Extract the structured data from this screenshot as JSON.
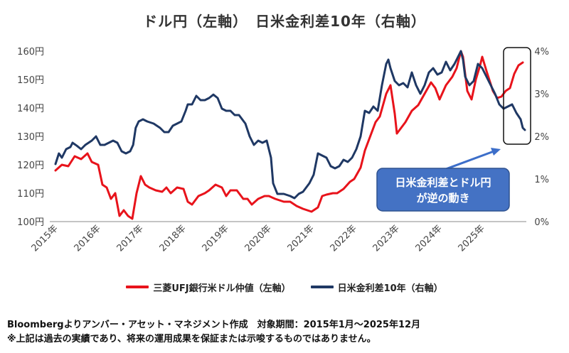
{
  "chart_data": {
    "type": "line",
    "title": "ドル円（左軸）　日米金利差10年（右軸）",
    "x_labels": [
      "2015年",
      "2016年",
      "2017年",
      "2018年",
      "2019年",
      "2020年",
      "2021年",
      "2022年",
      "2023年",
      "2024年",
      "2025年"
    ],
    "y_left": {
      "ticks": [
        "100円",
        "110円",
        "120円",
        "130円",
        "140円",
        "150円",
        "160円"
      ],
      "range": [
        100,
        160
      ]
    },
    "y_right": {
      "ticks": [
        "0%",
        "1%",
        "2%",
        "3%",
        "4%"
      ],
      "range": [
        0,
        4
      ]
    },
    "grid": false,
    "legend_position": "bottom",
    "callout": {
      "lines": [
        "日米金利差とドル円",
        "が逆の動き"
      ]
    },
    "series": [
      {
        "name": "三菱UFJ銀行米ドル仲値（左軸）",
        "axis": "left",
        "color": "#e8131b",
        "points": [
          [
            2015.0,
            118
          ],
          [
            2015.15,
            120
          ],
          [
            2015.3,
            119.5
          ],
          [
            2015.45,
            123
          ],
          [
            2015.6,
            122
          ],
          [
            2015.75,
            124
          ],
          [
            2015.85,
            121
          ],
          [
            2016.0,
            120
          ],
          [
            2016.1,
            113
          ],
          [
            2016.2,
            112
          ],
          [
            2016.3,
            108
          ],
          [
            2016.4,
            110
          ],
          [
            2016.5,
            102
          ],
          [
            2016.6,
            104
          ],
          [
            2016.7,
            102
          ],
          [
            2016.8,
            101
          ],
          [
            2016.9,
            110
          ],
          [
            2016.95,
            113
          ],
          [
            2017.0,
            116
          ],
          [
            2017.1,
            113
          ],
          [
            2017.2,
            112
          ],
          [
            2017.35,
            111
          ],
          [
            2017.5,
            110.5
          ],
          [
            2017.6,
            112
          ],
          [
            2017.7,
            110
          ],
          [
            2017.85,
            112
          ],
          [
            2018.0,
            111.5
          ],
          [
            2018.1,
            107
          ],
          [
            2018.2,
            106
          ],
          [
            2018.35,
            109
          ],
          [
            2018.5,
            110
          ],
          [
            2018.6,
            111
          ],
          [
            2018.75,
            113
          ],
          [
            2018.9,
            112
          ],
          [
            2019.0,
            109
          ],
          [
            2019.1,
            111
          ],
          [
            2019.25,
            111
          ],
          [
            2019.4,
            108
          ],
          [
            2019.5,
            108
          ],
          [
            2019.6,
            106
          ],
          [
            2019.75,
            108
          ],
          [
            2019.9,
            109
          ],
          [
            2020.0,
            109
          ],
          [
            2020.15,
            108
          ],
          [
            2020.25,
            107.5
          ],
          [
            2020.35,
            107
          ],
          [
            2020.5,
            107
          ],
          [
            2020.65,
            105.5
          ],
          [
            2020.8,
            104.5
          ],
          [
            2020.9,
            104
          ],
          [
            2021.0,
            103.5
          ],
          [
            2021.15,
            105
          ],
          [
            2021.25,
            109
          ],
          [
            2021.35,
            109.5
          ],
          [
            2021.5,
            110
          ],
          [
            2021.6,
            110
          ],
          [
            2021.75,
            111.5
          ],
          [
            2021.9,
            114
          ],
          [
            2022.0,
            115
          ],
          [
            2022.15,
            119
          ],
          [
            2022.25,
            125
          ],
          [
            2022.35,
            129
          ],
          [
            2022.5,
            135
          ],
          [
            2022.6,
            137
          ],
          [
            2022.75,
            145
          ],
          [
            2022.85,
            148
          ],
          [
            2022.95,
            138
          ],
          [
            2023.0,
            131
          ],
          [
            2023.1,
            133
          ],
          [
            2023.2,
            135
          ],
          [
            2023.35,
            139
          ],
          [
            2023.5,
            141
          ],
          [
            2023.65,
            145
          ],
          [
            2023.8,
            149
          ],
          [
            2023.9,
            147
          ],
          [
            2024.0,
            143
          ],
          [
            2024.15,
            148
          ],
          [
            2024.3,
            151
          ],
          [
            2024.4,
            154
          ],
          [
            2024.45,
            157
          ],
          [
            2024.5,
            160
          ],
          [
            2024.55,
            158
          ],
          [
            2024.65,
            146
          ],
          [
            2024.75,
            143
          ],
          [
            2024.85,
            150
          ],
          [
            2024.95,
            155
          ],
          [
            2025.0,
            158
          ],
          [
            2025.1,
            153
          ],
          [
            2025.25,
            146
          ],
          [
            2025.35,
            143.5
          ],
          [
            2025.45,
            144
          ],
          [
            2025.55,
            146
          ],
          [
            2025.65,
            147
          ],
          [
            2025.75,
            152
          ],
          [
            2025.85,
            155
          ],
          [
            2025.95,
            156
          ]
        ]
      },
      {
        "name": "日米金利差10年（右軸）",
        "axis": "right",
        "color": "#1f3864",
        "points": [
          [
            2015.0,
            1.35
          ],
          [
            2015.08,
            1.6
          ],
          [
            2015.15,
            1.5
          ],
          [
            2015.25,
            1.7
          ],
          [
            2015.35,
            1.75
          ],
          [
            2015.4,
            1.85
          ],
          [
            2015.5,
            1.78
          ],
          [
            2015.6,
            1.7
          ],
          [
            2015.7,
            1.8
          ],
          [
            2015.85,
            1.9
          ],
          [
            2015.95,
            2.0
          ],
          [
            2016.05,
            1.8
          ],
          [
            2016.15,
            1.8
          ],
          [
            2016.25,
            1.85
          ],
          [
            2016.35,
            1.9
          ],
          [
            2016.45,
            1.85
          ],
          [
            2016.55,
            1.65
          ],
          [
            2016.65,
            1.6
          ],
          [
            2016.75,
            1.65
          ],
          [
            2016.82,
            1.8
          ],
          [
            2016.88,
            2.2
          ],
          [
            2016.95,
            2.35
          ],
          [
            2017.05,
            2.4
          ],
          [
            2017.15,
            2.35
          ],
          [
            2017.3,
            2.3
          ],
          [
            2017.45,
            2.2
          ],
          [
            2017.55,
            2.1
          ],
          [
            2017.65,
            2.1
          ],
          [
            2017.75,
            2.25
          ],
          [
            2017.85,
            2.3
          ],
          [
            2017.95,
            2.35
          ],
          [
            2018.05,
            2.6
          ],
          [
            2018.1,
            2.75
          ],
          [
            2018.2,
            2.75
          ],
          [
            2018.3,
            2.95
          ],
          [
            2018.4,
            2.85
          ],
          [
            2018.5,
            2.85
          ],
          [
            2018.6,
            2.9
          ],
          [
            2018.7,
            2.98
          ],
          [
            2018.8,
            2.9
          ],
          [
            2018.9,
            2.65
          ],
          [
            2019.0,
            2.6
          ],
          [
            2019.1,
            2.6
          ],
          [
            2019.2,
            2.5
          ],
          [
            2019.3,
            2.5
          ],
          [
            2019.45,
            2.3
          ],
          [
            2019.55,
            2.0
          ],
          [
            2019.65,
            1.8
          ],
          [
            2019.75,
            1.9
          ],
          [
            2019.85,
            1.85
          ],
          [
            2019.95,
            1.9
          ],
          [
            2020.05,
            1.5
          ],
          [
            2020.1,
            0.9
          ],
          [
            2020.2,
            0.65
          ],
          [
            2020.35,
            0.65
          ],
          [
            2020.5,
            0.6
          ],
          [
            2020.6,
            0.55
          ],
          [
            2020.7,
            0.65
          ],
          [
            2020.8,
            0.7
          ],
          [
            2020.95,
            0.9
          ],
          [
            2021.05,
            1.1
          ],
          [
            2021.15,
            1.6
          ],
          [
            2021.25,
            1.55
          ],
          [
            2021.35,
            1.5
          ],
          [
            2021.45,
            1.3
          ],
          [
            2021.55,
            1.25
          ],
          [
            2021.65,
            1.3
          ],
          [
            2021.75,
            1.45
          ],
          [
            2021.85,
            1.4
          ],
          [
            2021.95,
            1.5
          ],
          [
            2022.05,
            1.7
          ],
          [
            2022.15,
            2.0
          ],
          [
            2022.25,
            2.6
          ],
          [
            2022.35,
            2.55
          ],
          [
            2022.45,
            2.7
          ],
          [
            2022.55,
            2.6
          ],
          [
            2022.65,
            3.2
          ],
          [
            2022.75,
            3.7
          ],
          [
            2022.8,
            3.8
          ],
          [
            2022.85,
            3.6
          ],
          [
            2022.95,
            3.3
          ],
          [
            2023.05,
            3.2
          ],
          [
            2023.15,
            3.25
          ],
          [
            2023.25,
            3.15
          ],
          [
            2023.35,
            3.5
          ],
          [
            2023.45,
            3.2
          ],
          [
            2023.55,
            3.0
          ],
          [
            2023.65,
            3.2
          ],
          [
            2023.75,
            3.5
          ],
          [
            2023.85,
            3.6
          ],
          [
            2023.95,
            3.45
          ],
          [
            2024.05,
            3.5
          ],
          [
            2024.15,
            3.75
          ],
          [
            2024.25,
            3.55
          ],
          [
            2024.35,
            3.7
          ],
          [
            2024.45,
            3.9
          ],
          [
            2024.5,
            4.0
          ],
          [
            2024.55,
            3.8
          ],
          [
            2024.6,
            3.4
          ],
          [
            2024.7,
            3.2
          ],
          [
            2024.8,
            3.3
          ],
          [
            2024.9,
            3.7
          ],
          [
            2025.0,
            3.6
          ],
          [
            2025.1,
            3.4
          ],
          [
            2025.2,
            3.2
          ],
          [
            2025.3,
            3.0
          ],
          [
            2025.4,
            2.75
          ],
          [
            2025.5,
            2.65
          ],
          [
            2025.6,
            2.7
          ],
          [
            2025.7,
            2.75
          ],
          [
            2025.8,
            2.55
          ],
          [
            2025.9,
            2.4
          ],
          [
            2025.95,
            2.2
          ],
          [
            2026.0,
            2.15
          ]
        ]
      }
    ]
  },
  "footnotes": [
    "Bloombergよりアンバー・アセット・マネジメント作成　対象期間：2015年1月～2025年12月",
    "※上記は過去の実績であり、将来の運用成果を保証または示唆するものではありません。"
  ]
}
